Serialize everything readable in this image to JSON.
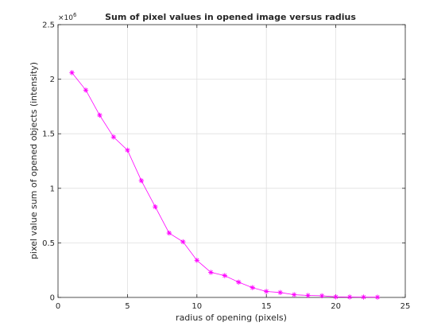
{
  "chart_data": {
    "type": "line",
    "title": "Sum of pixel values in opened image versus radius",
    "xlabel": "radius of opening (pixels)",
    "ylabel": "pixel value sum of opened objects (intensity)",
    "xlim": [
      0,
      25
    ],
    "ylim": [
      0,
      2.5
    ],
    "y_multiplier": "×10",
    "y_multiplier_exponent": "6",
    "grid": true,
    "x_ticks": [
      0,
      5,
      10,
      15,
      20,
      25
    ],
    "y_ticks": [
      0,
      0.5,
      1,
      1.5,
      2,
      2.5
    ],
    "x_tick_labels": [
      "0",
      "5",
      "10",
      "15",
      "20",
      "25"
    ],
    "y_tick_labels": [
      "0",
      "0.5",
      "1",
      "1.5",
      "2",
      "2.5"
    ],
    "series": [
      {
        "color": "#ff00ff",
        "marker": "asterisk",
        "x": [
          1,
          2,
          3,
          4,
          5,
          6,
          7,
          8,
          9,
          10,
          11,
          12,
          13,
          14,
          15,
          16,
          17,
          18,
          19,
          20,
          21,
          22,
          23
        ],
        "y": [
          2.06,
          1.9,
          1.67,
          1.47,
          1.35,
          1.07,
          0.83,
          0.59,
          0.51,
          0.34,
          0.23,
          0.2,
          0.14,
          0.09,
          0.055,
          0.045,
          0.025,
          0.018,
          0.015,
          0.005,
          0.004,
          0.003,
          0.002
        ]
      }
    ]
  }
}
